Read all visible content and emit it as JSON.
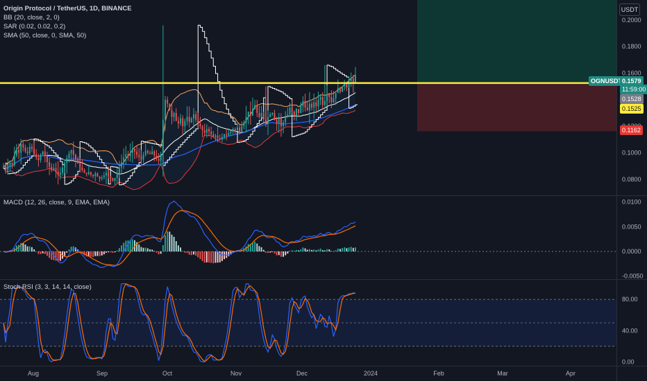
{
  "header": {
    "title": "Origin Protocol / TetherUS, 1D, BINANCE",
    "bb": "BB (20, close, 2, 0)",
    "sar": "SAR (0.02, 0.02, 0.2)",
    "sma": "SMA (50, close, 0, SMA, 50)"
  },
  "currency_button": "USDT",
  "macd_legend": "MACD (12, 26, close, 9, EMA, EMA)",
  "stoch_legend": "Stoch RSI (3, 3, 14, 14, close)",
  "colors": {
    "background": "#131722",
    "up": "#26a69a",
    "down": "#ef5350",
    "level_line": "#ffeb3b",
    "bb_upper": "#f7a35c",
    "bb_lower": "#e53935",
    "sma": "#2962ff",
    "sar": "#ffffff",
    "macd_line": "#2962ff",
    "signal_line": "#ff6d00",
    "stoch_k": "#2962ff",
    "stoch_d": "#ff6d00",
    "profit_zone": "#0e3b36",
    "loss_zone": "#4a1e26"
  },
  "price_tags": {
    "symbol": "OGNUSDT",
    "last": "0.1579",
    "countdown": "11:59:00",
    "sar_value": "0.1528",
    "level_value": "0.1525",
    "stop_value": "0.1162"
  },
  "chart_data": [
    {
      "type": "candlestick",
      "panel": "price",
      "title": "Origin Protocol / TetherUS, 1D, BINANCE",
      "ylim": [
        0.068,
        0.215
      ],
      "y_ticks": [
        "0.2000",
        "0.1800",
        "0.1600",
        "0.1400",
        "0.1200",
        "0.1000",
        "0.0800"
      ],
      "horizontal_level": 0.1525,
      "position": {
        "entry": 0.1525,
        "target": 0.215,
        "stop": 0.1162
      },
      "x_ticks": [
        "Aug",
        "Sep",
        "Oct",
        "Nov",
        "Dec",
        "2024",
        "Feb",
        "Mar",
        "Apr"
      ],
      "series_close": [
        0.0895,
        0.087,
        0.0905,
        0.0925,
        0.091,
        0.098,
        0.1025,
        0.1,
        0.1065,
        0.104,
        0.101,
        0.0995,
        0.1045,
        0.103,
        0.099,
        0.0965,
        0.0945,
        0.0985,
        0.101,
        0.0975,
        0.093,
        0.0895,
        0.087,
        0.0885,
        0.086,
        0.0835,
        0.085,
        0.089,
        0.0925,
        0.096,
        0.0995,
        0.102,
        0.0985,
        0.095,
        0.092,
        0.089,
        0.087,
        0.085,
        0.084,
        0.0855,
        0.0835,
        0.0825,
        0.0845,
        0.082,
        0.0805,
        0.0815,
        0.083,
        0.085,
        0.0825,
        0.081,
        0.079,
        0.081,
        0.085,
        0.089,
        0.093,
        0.0965,
        0.099,
        0.0975,
        0.1,
        0.103,
        0.101,
        0.0985,
        0.097,
        0.095,
        0.0985,
        0.1015,
        0.1,
        0.099,
        0.101,
        0.098,
        0.0955,
        0.094,
        0.099,
        0.125,
        0.14,
        0.137,
        0.132,
        0.127,
        0.13,
        0.124,
        0.122,
        0.126,
        0.12,
        0.124,
        0.127,
        0.123,
        0.126,
        0.129,
        0.125,
        0.122,
        0.12,
        0.117,
        0.115,
        0.118,
        0.116,
        0.114,
        0.112,
        0.113,
        0.111,
        0.11,
        0.112,
        0.114,
        0.113,
        0.115,
        0.116,
        0.118,
        0.117,
        0.119,
        0.116,
        0.12,
        0.123,
        0.127,
        0.131,
        0.128,
        0.133,
        0.136,
        0.13,
        0.127,
        0.13,
        0.125,
        0.122,
        0.127,
        0.129,
        0.13,
        0.125,
        0.122,
        0.126,
        0.12,
        0.123,
        0.127,
        0.129,
        0.134,
        0.131,
        0.128,
        0.133,
        0.13,
        0.135,
        0.139,
        0.134,
        0.132,
        0.137,
        0.134,
        0.138,
        0.135,
        0.14,
        0.142,
        0.136,
        0.139,
        0.144,
        0.142,
        0.138,
        0.141,
        0.145,
        0.149,
        0.146,
        0.15,
        0.152,
        0.149,
        0.154,
        0.156,
        0.153,
        0.1579
      ]
    },
    {
      "type": "macd",
      "panel": "macd",
      "title": "MACD (12, 26, close, 9, EMA, EMA)",
      "ylim": [
        -0.0056,
        0.0112
      ],
      "y_ticks": [
        "0.0100",
        "0.0050",
        "0.0000",
        "-0.0050"
      ]
    },
    {
      "type": "line",
      "panel": "stoch_rsi",
      "title": "Stoch RSI (3, 3, 14, 14, close)",
      "ylim": [
        -5,
        105
      ],
      "y_ticks": [
        "80.00",
        "40.00",
        "0.00"
      ],
      "bands": [
        80,
        50,
        20
      ]
    }
  ]
}
